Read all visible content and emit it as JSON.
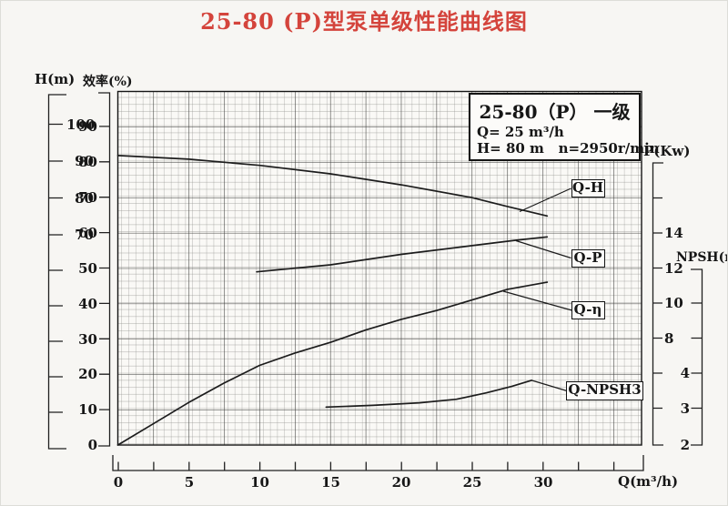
{
  "title": "25-80 (P)型泵单级性能曲线图",
  "colors": {
    "title_red": "#d4443c",
    "line_black": "#1c1c1c"
  },
  "info_box": {
    "model": "25-80（P） 一级",
    "flow": "Q= 25 m³/h",
    "head_speed": "H= 80 m   n=2950r/min"
  },
  "axes": {
    "h": {
      "title": "H(m)",
      "ticks": [
        "100",
        "90",
        "80",
        "70"
      ]
    },
    "efficiency": {
      "title": "效率(%)",
      "ticks": [
        "90",
        "80",
        "70",
        "60",
        "50",
        "40",
        "30",
        "20",
        "10",
        "0"
      ]
    },
    "p": {
      "title": "P(Kw)",
      "ticks": [
        "14",
        "12",
        "10",
        "8"
      ]
    },
    "npsh": {
      "title": "NPSH(m)",
      "ticks": [
        "4",
        "3",
        "2"
      ]
    },
    "q": {
      "title": "Q(m³/h)",
      "ticks": [
        "0",
        "5",
        "10",
        "15",
        "20",
        "25",
        "30"
      ]
    }
  },
  "curve_labels": {
    "qh": "Q-H",
    "qp": "Q-P",
    "qeta": "Q-η",
    "qnpsh3": "Q-NPSH3"
  },
  "chart_data": {
    "type": "line",
    "title": "25-80 (P) 型泵单级性能曲线图 (pump single-stage performance curves)",
    "x_axis": {
      "label": "Q(m³/h)",
      "range": [
        0,
        37.5
      ],
      "tick_labels": [
        0,
        5,
        10,
        15,
        20,
        25,
        30
      ],
      "grid": true
    },
    "y_axes": [
      {
        "id": "H",
        "label": "H(m)",
        "visible_tick_labels": [
          100,
          90,
          80,
          70
        ]
      },
      {
        "id": "eff",
        "label": "效率(%)",
        "visible_tick_labels": [
          90,
          80,
          70,
          60,
          50,
          40,
          30,
          20,
          10,
          0
        ]
      },
      {
        "id": "P",
        "label": "P(Kw)",
        "visible_tick_labels": [
          14,
          12,
          10,
          8
        ]
      },
      {
        "id": "npsh",
        "label": "NPSH(m)",
        "visible_tick_labels": [
          4,
          3,
          2
        ]
      }
    ],
    "rated_point": {
      "Q": 25,
      "H": 80,
      "n_rpm": 2950
    },
    "series": [
      {
        "id": "qh",
        "name": "Q-H",
        "scale": "H",
        "units": "m",
        "points": [
          [
            0,
            91.5
          ],
          [
            5,
            90.5
          ],
          [
            10,
            88.8
          ],
          [
            15,
            86.5
          ],
          [
            20,
            83.5
          ],
          [
            25,
            80
          ],
          [
            27.5,
            77.6
          ],
          [
            30.3,
            75
          ]
        ]
      },
      {
        "id": "qp",
        "name": "Q-P",
        "scale": "P",
        "units": "Kw",
        "points": [
          [
            9.8,
            11.8
          ],
          [
            15,
            12.2
          ],
          [
            20,
            12.8
          ],
          [
            25,
            13.3
          ],
          [
            28,
            13.6
          ],
          [
            30.3,
            13.8
          ]
        ]
      },
      {
        "id": "qeta",
        "name": "Q-η",
        "scale": "eff",
        "units": "%",
        "points": [
          [
            0,
            0
          ],
          [
            2.5,
            6
          ],
          [
            5,
            12
          ],
          [
            7.5,
            17.5
          ],
          [
            10,
            22.5
          ],
          [
            12.5,
            26
          ],
          [
            15,
            29
          ],
          [
            17.5,
            32.5
          ],
          [
            20,
            35.5
          ],
          [
            22.5,
            38
          ],
          [
            25,
            41
          ],
          [
            27.5,
            44
          ],
          [
            30.3,
            46
          ]
        ]
      },
      {
        "id": "qnpsh3",
        "name": "Q-NPSH3",
        "scale": "npsh",
        "units": "m",
        "points": [
          [
            14.7,
            3.05
          ],
          [
            18,
            3.1
          ],
          [
            21.3,
            3.17
          ],
          [
            23.9,
            3.27
          ],
          [
            26,
            3.45
          ],
          [
            27.8,
            3.63
          ],
          [
            29.2,
            3.8
          ]
        ]
      }
    ],
    "legend_position": "labels-on-plot-right"
  }
}
